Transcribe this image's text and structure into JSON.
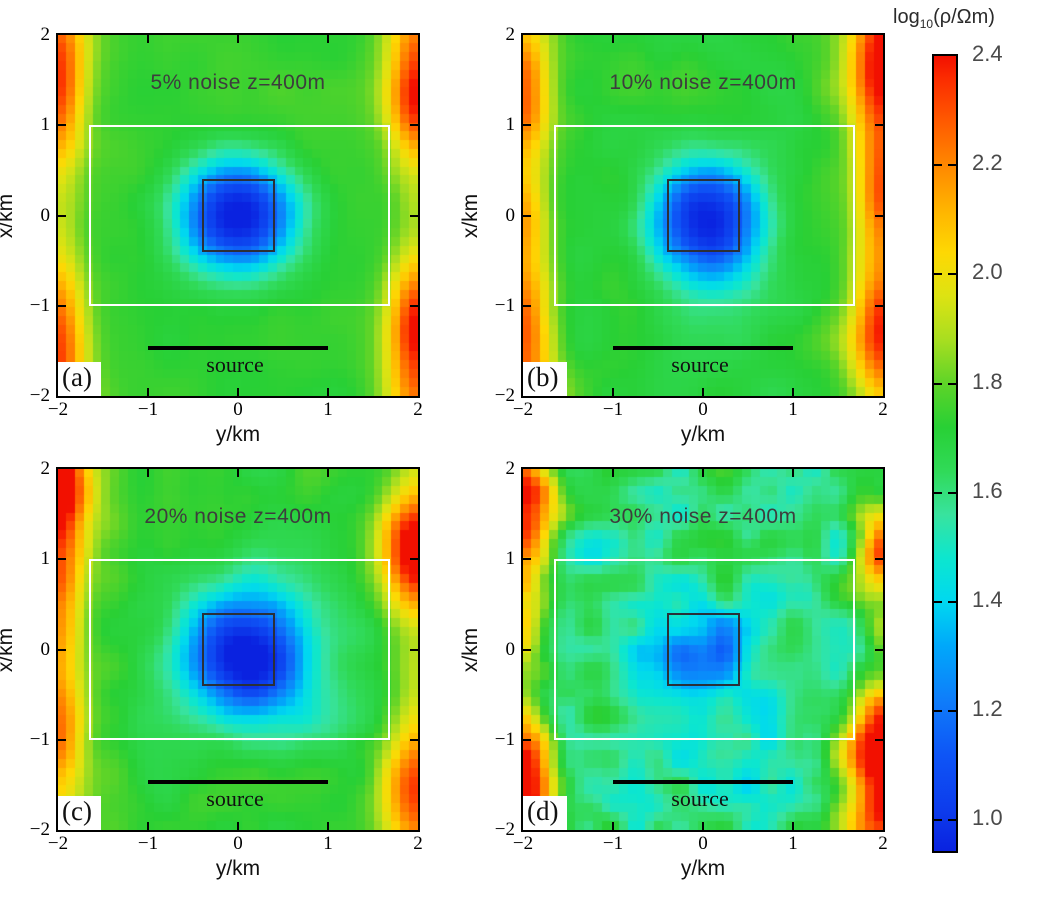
{
  "chart_data": {
    "type": "heatmap",
    "description": "2x2 grid of horizontal resistivity slices (z=400m) from 3-D inversion with increasing data noise; jet colormap of log10 resistivity with survey-area rectangle, true-target square and source line overlays",
    "shared": {
      "xlabel": "y/km",
      "ylabel": "x/km",
      "xlim": [
        -2,
        2
      ],
      "ylim": [
        -2,
        2
      ],
      "xtick_labels": [
        "−2",
        "−1",
        "0",
        "1",
        "2"
      ],
      "xtick_values": [
        -2,
        -1,
        0,
        1,
        2
      ],
      "ytick_labels": [
        "2",
        "1",
        "0",
        "−1",
        "−2"
      ],
      "ytick_values": [
        2,
        1,
        0,
        -1,
        -2
      ],
      "inner_tick_values": [
        -1,
        0,
        1
      ]
    },
    "overlays": {
      "survey_rect": {
        "y_range": [
          -1.65,
          1.68
        ],
        "x_range": [
          -1,
          1
        ],
        "color": "#ffffff"
      },
      "target_square": {
        "y_range": [
          -0.4,
          0.4
        ],
        "x_range": [
          -0.4,
          0.4
        ],
        "color": "#2b3038"
      },
      "source_line": {
        "x": -1.45,
        "y_range": [
          -1,
          1
        ],
        "color": "#000000",
        "label": "source"
      }
    },
    "panels": [
      {
        "id": "a",
        "label": "(a)",
        "title": "5% noise z=400m",
        "noise_percent": 5,
        "depth_slice": "z=400m",
        "xlabel": "y/km",
        "ylabel": "x/km",
        "source_label": "source",
        "background_log10": 1.74,
        "anomaly_center_log10": 0.95,
        "edge_artifact_max_log10": 2.15,
        "field": {
          "seed": 11,
          "base": 1.735,
          "bg_amp": 0.035,
          "bg_scale": 6,
          "hf_amp": 0.012,
          "hf_scale": 13,
          "anomaly": {
            "u": 0,
            "v": 0,
            "depth": 0.8,
            "sigma": 0.45,
            "power": 1.2
          },
          "blobs": [],
          "hotspots": [
            [
              -2,
              1.35,
              0.42,
              0.22,
              0.5
            ],
            [
              -2,
              -1.3,
              0.4,
              0.22,
              0.5
            ],
            [
              -2,
              0,
              0.16,
              0.2,
              2.3
            ],
            [
              2,
              1.25,
              0.5,
              0.24,
              0.45
            ],
            [
              2,
              -1.2,
              0.52,
              0.24,
              0.45
            ],
            [
              2,
              0,
              0.16,
              0.2,
              2.3
            ],
            [
              -2,
              2,
              0.26,
              0.3,
              0.35
            ],
            [
              2,
              2,
              0.24,
              0.3,
              0.35
            ],
            [
              -2,
              -2,
              0.26,
              0.3,
              0.35
            ],
            [
              2,
              -2,
              0.24,
              0.3,
              0.35
            ]
          ]
        }
      },
      {
        "id": "b",
        "label": "(b)",
        "title": "10% noise z=400m",
        "noise_percent": 10,
        "depth_slice": "z=400m",
        "xlabel": "y/km",
        "ylabel": "x/km",
        "source_label": "source",
        "background_log10": 1.73,
        "anomaly_center_log10": 1.0,
        "edge_artifact_max_log10": 2.2,
        "field": {
          "seed": 22,
          "base": 1.73,
          "bg_amp": 0.05,
          "bg_scale": 7,
          "hf_amp": 0.02,
          "hf_scale": 13,
          "anomaly": {
            "u": 0.05,
            "v": -0.05,
            "depth": 0.74,
            "sigma": 0.45,
            "power": 1.15
          },
          "blobs": [
            [
              0.1,
              -0.8,
              -0.1,
              0.45
            ]
          ],
          "hotspots": [
            [
              -2,
              1.4,
              0.45,
              0.24,
              0.5
            ],
            [
              -2,
              -0.05,
              0.3,
              0.2,
              0.4
            ],
            [
              -2,
              -1.15,
              0.42,
              0.24,
              0.45
            ],
            [
              -2,
              -2,
              0.34,
              0.3,
              0.4
            ],
            [
              -2,
              0,
              0.14,
              0.2,
              2.3
            ],
            [
              2,
              1.55,
              0.48,
              0.26,
              0.5
            ],
            [
              2,
              0.3,
              0.4,
              0.22,
              0.5
            ],
            [
              2,
              -1.3,
              0.55,
              0.26,
              0.55
            ],
            [
              2,
              2,
              0.28,
              0.3,
              0.35
            ],
            [
              2,
              0,
              0.14,
              0.2,
              2.3
            ]
          ]
        }
      },
      {
        "id": "c",
        "label": "(c)",
        "title": "20% noise z=400m",
        "noise_percent": 20,
        "depth_slice": "z=400m",
        "xlabel": "y/km",
        "ylabel": "x/km",
        "source_label": "source",
        "background_log10": 1.72,
        "anomaly_center_log10": 0.95,
        "edge_artifact_max_log10": 2.35,
        "field": {
          "seed": 33,
          "base": 1.725,
          "bg_amp": 0.055,
          "bg_scale": 7,
          "hf_amp": 0.028,
          "hf_scale": 13,
          "anomaly": {
            "u": 0.05,
            "v": -0.05,
            "depth": 0.78,
            "sigma": 0.5,
            "power": 1.1
          },
          "blobs": [
            [
              0.55,
              -0.45,
              -0.16,
              0.5
            ],
            [
              0.9,
              0.85,
              -0.1,
              0.4
            ]
          ],
          "hotspots": [
            [
              -2,
              1.55,
              0.5,
              0.24,
              0.5
            ],
            [
              -2,
              0.4,
              0.28,
              0.2,
              0.5
            ],
            [
              -2,
              -0.9,
              0.36,
              0.22,
              0.55
            ],
            [
              -2,
              2,
              0.34,
              0.3,
              0.4
            ],
            [
              -2,
              0,
              0.16,
              0.2,
              2.3
            ],
            [
              2,
              1.1,
              0.72,
              0.3,
              0.42
            ],
            [
              2,
              -1.6,
              0.5,
              0.3,
              0.5
            ],
            [
              2,
              0,
              0.12,
              0.2,
              2.3
            ]
          ]
        }
      },
      {
        "id": "d",
        "label": "(d)",
        "title": "30% noise z=400m",
        "noise_percent": 30,
        "depth_slice": "z=400m",
        "xlabel": "y/km",
        "ylabel": "x/km",
        "source_label": "source",
        "background_log10": 1.55,
        "anomaly_center_log10": 1.3,
        "edge_artifact_max_log10": 2.4,
        "field": {
          "seed": 47,
          "base": 1.63,
          "bg_amp": 0.13,
          "bg_scale": 9,
          "hf_amp": 0.09,
          "hf_scale": 16,
          "anomaly": {
            "u": 0,
            "v": 0,
            "depth": 0.32,
            "sigma": 0.4,
            "power": 1.6
          },
          "blobs": [
            [
              0,
              -0.1,
              -0.08,
              1.35
            ]
          ],
          "hotspots": [
            [
              -2,
              1.55,
              0.8,
              0.26,
              0.42
            ],
            [
              -2,
              -1.3,
              0.7,
              0.26,
              0.4
            ],
            [
              -2,
              -1.95,
              0.55,
              0.3,
              0.35
            ],
            [
              -2,
              0.35,
              0.28,
              0.2,
              0.3
            ],
            [
              -2,
              0,
              0.15,
              0.2,
              2.3
            ],
            [
              2,
              1.15,
              0.5,
              0.24,
              0.4
            ],
            [
              2,
              -1.15,
              0.75,
              0.28,
              0.5
            ],
            [
              2,
              -1.9,
              0.35,
              0.3,
              0.4
            ],
            [
              2,
              0,
              0.12,
              0.2,
              2.3
            ]
          ]
        }
      }
    ],
    "colorbar": {
      "title": "log10(ρ/Ωm)",
      "title_prefix": "log",
      "title_sub": "10",
      "title_suffix": "(ρ/Ωm)",
      "tick_labels": [
        "2.4",
        "2.2",
        "2.0",
        "1.8",
        "1.6",
        "1.4",
        "1.2",
        "1.0"
      ],
      "tick_values": [
        2.4,
        2.2,
        2.0,
        1.8,
        1.6,
        1.4,
        1.2,
        1.0
      ],
      "vmin": 0.944,
      "vmax": 2.4,
      "stops": [
        [
          0.94,
          "#0a22e0"
        ],
        [
          1.02,
          "#0d3cec"
        ],
        [
          1.12,
          "#0e55f6"
        ],
        [
          1.22,
          "#0f7dfa"
        ],
        [
          1.32,
          "#00a8fa"
        ],
        [
          1.4,
          "#00d8f0"
        ],
        [
          1.48,
          "#0ce6cf"
        ],
        [
          1.56,
          "#38e39e"
        ],
        [
          1.64,
          "#30da58"
        ],
        [
          1.72,
          "#28d035"
        ],
        [
          1.8,
          "#5ed428"
        ],
        [
          1.88,
          "#a8de20"
        ],
        [
          1.96,
          "#dde312"
        ],
        [
          2.04,
          "#fed803"
        ],
        [
          2.12,
          "#ffb300"
        ],
        [
          2.2,
          "#ff8800"
        ],
        [
          2.28,
          "#ff5a00"
        ],
        [
          2.36,
          "#fb2b00"
        ],
        [
          2.4,
          "#f21000"
        ]
      ]
    }
  }
}
